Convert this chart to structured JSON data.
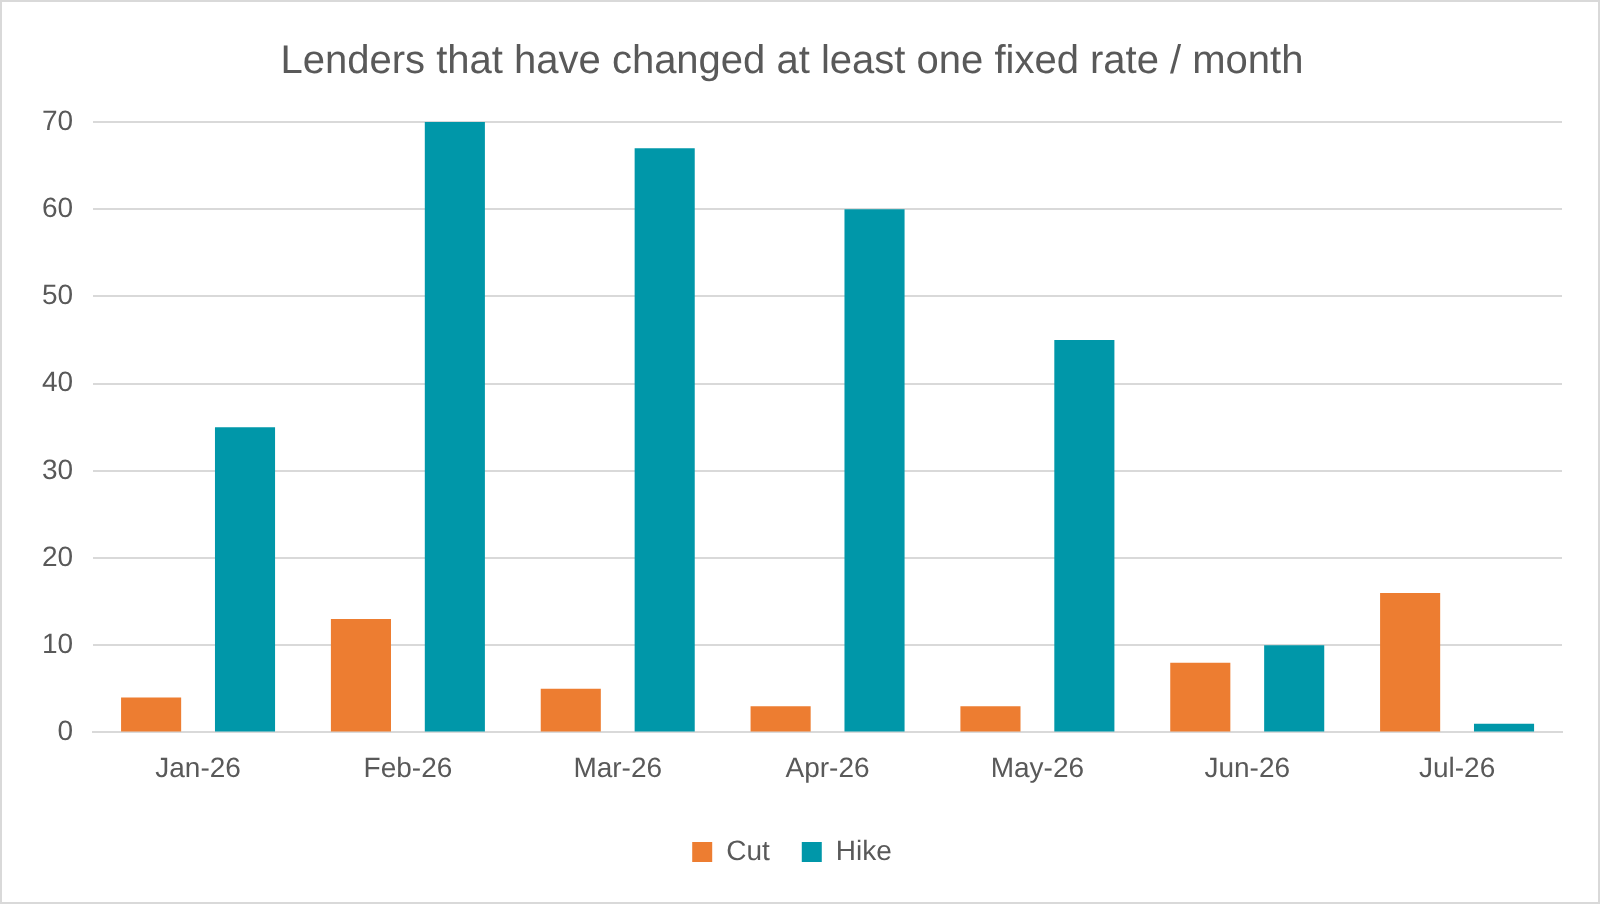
{
  "chart_data": {
    "type": "bar",
    "title": "Lenders that have changed at least one fixed rate / month",
    "categories": [
      "Jan-26",
      "Feb-26",
      "Mar-26",
      "Apr-26",
      "May-26",
      "Jun-26",
      "Jul-26"
    ],
    "series": [
      {
        "name": "Cut",
        "color": "#ed7d31",
        "values": [
          4,
          13,
          5,
          3,
          3,
          8,
          16
        ]
      },
      {
        "name": "Hike",
        "color": "#0097a9",
        "values": [
          35,
          70,
          67,
          60,
          45,
          10,
          1
        ]
      }
    ],
    "ylim": [
      0,
      70
    ],
    "yticks": [
      0,
      10,
      20,
      30,
      40,
      50,
      60,
      70
    ],
    "grid": "y",
    "legend": "bottom"
  }
}
